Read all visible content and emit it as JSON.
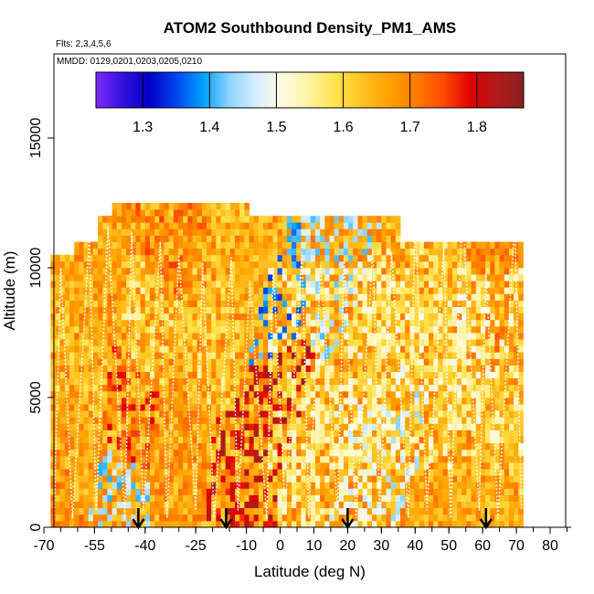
{
  "chart_data": {
    "type": "heatmap",
    "title": "ATOM2 Southbound Density_PM1_AMS",
    "subtitle_flights": "Flts: 2,3,4,5,6",
    "subtitle_dates": "MMDD: 0129,0201,0203,0205,0210",
    "xlabel": "Latitude (deg N)",
    "ylabel": "Altitude (m)",
    "xlim": [
      -70,
      85
    ],
    "ylim": [
      0,
      17500
    ],
    "x_ticks": [
      -70,
      -55,
      -40,
      -25,
      -10,
      0,
      10,
      20,
      30,
      40,
      50,
      60,
      70,
      80
    ],
    "x_tick_labels": [
      "-70",
      "-55",
      "-40",
      "-25",
      "-10",
      "0",
      "10",
      "20",
      "30",
      "40",
      "50",
      "60",
      "70",
      "80"
    ],
    "y_ticks": [
      0,
      5000,
      10000,
      15000
    ],
    "y_tick_labels": [
      "0",
      "5000",
      "10000",
      "15000"
    ],
    "colorbar": {
      "range": [
        1.23,
        1.87
      ],
      "ticks": [
        1.3,
        1.4,
        1.5,
        1.6,
        1.7,
        1.8
      ],
      "tick_labels": [
        "1.3",
        "1.4",
        "1.5",
        "1.6",
        "1.7",
        "1.8"
      ],
      "colors": [
        "#7f2bff",
        "#3311dd",
        "#0000c8",
        "#0044ee",
        "#00a0ff",
        "#8fd4ff",
        "#d8eeff",
        "#fffbe0",
        "#fff2a0",
        "#ffe24a",
        "#ffc020",
        "#ffa000",
        "#ff7a00",
        "#ff4a00",
        "#e00000",
        "#b01a1a",
        "#8a2020"
      ]
    },
    "data_extent": {
      "lat_min": -68,
      "lat_max": 71,
      "alt_min": 0,
      "alt_max": 12500
    },
    "sounding_arrows_lat": [
      -42,
      -16,
      20,
      61
    ],
    "cells": [
      {
        "lat": -64,
        "alt": 500,
        "v": 1.7
      },
      {
        "lat": -60,
        "alt": 3000,
        "v": 1.65
      },
      {
        "lat": -58,
        "alt": 6000,
        "v": 1.62
      },
      {
        "lat": -54,
        "alt": 9000,
        "v": 1.66
      },
      {
        "lat": -50,
        "alt": 1000,
        "v": 1.44
      },
      {
        "lat": -46,
        "alt": 4500,
        "v": 1.76
      },
      {
        "lat": -40,
        "alt": 8000,
        "v": 1.58
      },
      {
        "lat": -35,
        "alt": 11000,
        "v": 1.72
      },
      {
        "lat": -30,
        "alt": 2500,
        "v": 1.69
      },
      {
        "lat": -22,
        "alt": 7000,
        "v": 1.6
      },
      {
        "lat": -14,
        "alt": 1500,
        "v": 1.8
      },
      {
        "lat": -8,
        "alt": 10500,
        "v": 1.62
      },
      {
        "lat": 0,
        "alt": 8500,
        "v": 1.38
      },
      {
        "lat": 2,
        "alt": 5000,
        "v": 1.82
      },
      {
        "lat": 8,
        "alt": 3500,
        "v": 1.55
      },
      {
        "lat": 14,
        "alt": 9500,
        "v": 1.45
      },
      {
        "lat": 22,
        "alt": 3000,
        "v": 1.5
      },
      {
        "lat": 28,
        "alt": 6500,
        "v": 1.56
      },
      {
        "lat": 34,
        "alt": 4000,
        "v": 1.47
      },
      {
        "lat": 42,
        "alt": 8000,
        "v": 1.59
      },
      {
        "lat": 48,
        "alt": 2000,
        "v": 1.64
      },
      {
        "lat": 55,
        "alt": 6000,
        "v": 1.53
      },
      {
        "lat": 62,
        "alt": 3500,
        "v": 1.61
      },
      {
        "lat": 68,
        "alt": 9000,
        "v": 1.7
      }
    ]
  }
}
